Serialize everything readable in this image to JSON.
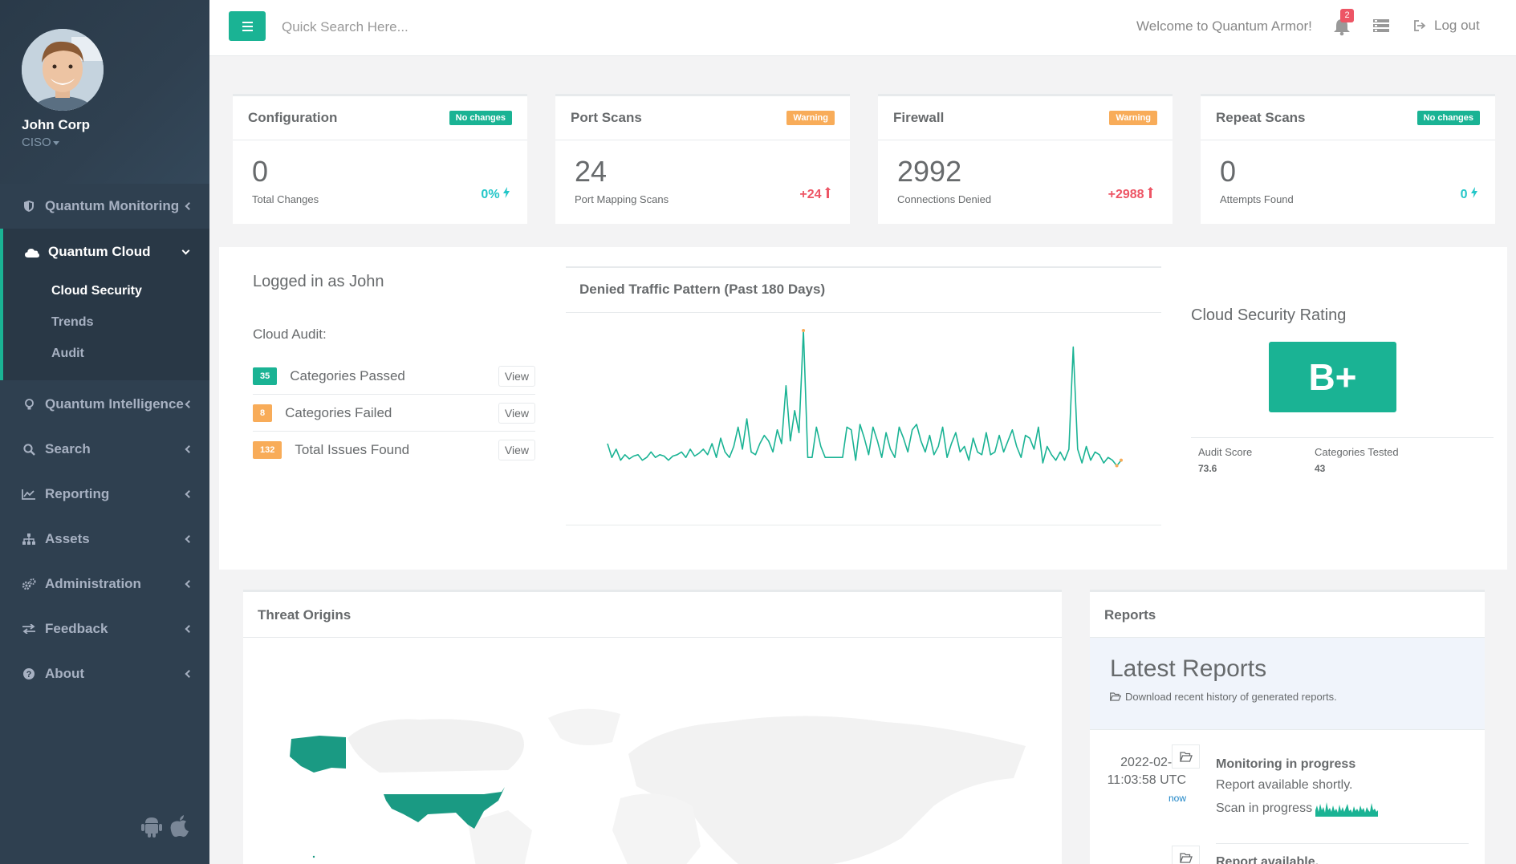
{
  "profile": {
    "name": "John Corp",
    "role": "CISO"
  },
  "sidebar": {
    "items": [
      {
        "label": "Quantum Monitoring",
        "icon": "shield-icon"
      },
      {
        "label": "Quantum Cloud",
        "icon": "cloud-icon",
        "sub": [
          "Cloud Security",
          "Trends",
          "Audit"
        ]
      },
      {
        "label": "Quantum Intelligence",
        "icon": "lightbulb-icon"
      },
      {
        "label": "Search",
        "icon": "search-icon"
      },
      {
        "label": "Reporting",
        "icon": "line-chart-icon"
      },
      {
        "label": "Assets",
        "icon": "sitemap-icon"
      },
      {
        "label": "Administration",
        "icon": "cogs-icon"
      },
      {
        "label": "Feedback",
        "icon": "exchange-icon"
      },
      {
        "label": "About",
        "icon": "question-circle-icon"
      }
    ]
  },
  "topbar": {
    "search_placeholder": "Quick Search Here...",
    "welcome": "Welcome to Quantum Armor!",
    "notifications": "2",
    "logout": "Log out"
  },
  "stats": [
    {
      "title": "Configuration",
      "badge": "No changes",
      "value": "0",
      "sub": "Total Changes",
      "change": "0%"
    },
    {
      "title": "Port Scans",
      "badge": "Warning",
      "value": "24",
      "sub": "Port Mapping Scans",
      "change": "+24"
    },
    {
      "title": "Firewall",
      "badge": "Warning",
      "value": "2992",
      "sub": "Connections Denied",
      "change": "+2988"
    },
    {
      "title": "Repeat Scans",
      "badge": "No changes",
      "value": "0",
      "sub": "Attempts Found",
      "change": "0"
    }
  ],
  "audit": {
    "logged_in": "Logged in as John",
    "label": "Cloud Audit:",
    "rows": [
      {
        "count": "35",
        "label": "Categories Passed",
        "action": "View"
      },
      {
        "count": "8",
        "label": "Categories Failed",
        "action": "View"
      },
      {
        "count": "132",
        "label": "Total Issues Found",
        "action": "View"
      }
    ]
  },
  "chart_data": {
    "type": "line",
    "title": "Denied Traffic Pattern (Past 180 Days)",
    "xlabel": "",
    "ylabel": "",
    "ylim": [
      0,
      100
    ],
    "values": [
      18,
      8,
      14,
      6,
      10,
      7,
      9,
      10,
      6,
      8,
      12,
      8,
      10,
      9,
      6,
      9,
      10,
      12,
      8,
      14,
      9,
      11,
      14,
      10,
      18,
      8,
      22,
      12,
      8,
      16,
      30,
      14,
      36,
      12,
      10,
      18,
      24,
      20,
      12,
      28,
      18,
      60,
      20,
      42,
      26,
      100,
      8,
      8,
      30,
      16,
      8,
      8,
      8,
      8,
      8,
      30,
      28,
      6,
      32,
      22,
      10,
      30,
      20,
      8,
      26,
      14,
      8,
      30,
      22,
      12,
      28,
      32,
      20,
      12,
      24,
      10,
      16,
      30,
      8,
      18,
      26,
      12,
      16,
      6,
      22,
      12,
      10,
      26,
      10,
      12,
      24,
      12,
      20,
      28,
      16,
      8,
      24,
      22,
      14,
      30,
      4,
      16,
      10,
      6,
      12,
      6,
      14,
      88,
      14,
      4,
      16,
      6,
      12,
      10,
      4,
      8,
      6,
      2,
      6
    ]
  },
  "rating": {
    "title": "Cloud Security Rating",
    "grade": "B+",
    "audit_score_label": "Audit Score",
    "audit_score": "73.6",
    "categories_label": "Categories Tested",
    "categories": "43"
  },
  "threat": {
    "title": "Threat Origins"
  },
  "reports": {
    "title": "Reports",
    "hero_title": "Latest Reports",
    "hero_sub": "Download recent history of generated reports.",
    "items": [
      {
        "date": "2022-02-22",
        "time": "11:03:58 UTC",
        "ago": "now",
        "title": "Monitoring in progress",
        "desc": "Report available shortly.",
        "status": "Scan in progress"
      },
      {
        "title": "Report available."
      }
    ]
  },
  "colors": {
    "accent": "#1ab394",
    "warning": "#f8ac59",
    "danger": "#ed5565",
    "sidebar": "#2f4050"
  }
}
